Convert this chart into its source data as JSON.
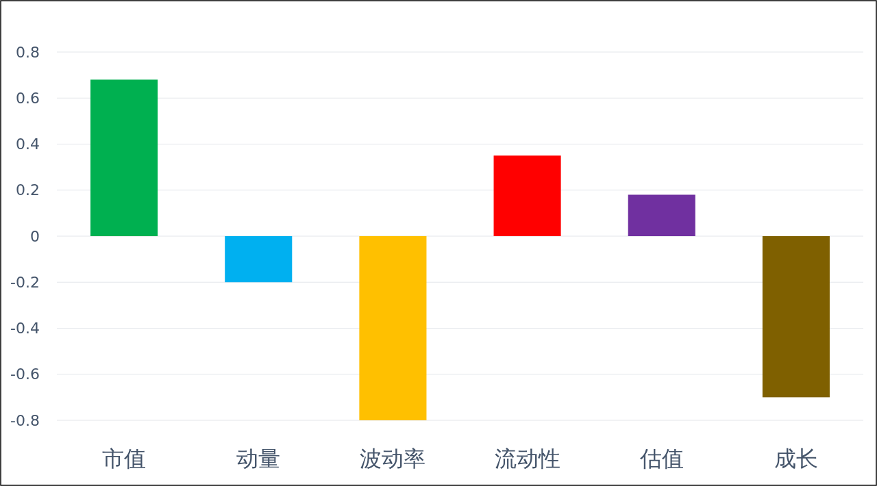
{
  "chart_data": {
    "type": "bar",
    "categories": [
      "市值",
      "动量",
      "波动率",
      "流动性",
      "估值",
      "成长"
    ],
    "values": [
      0.68,
      -0.2,
      -0.8,
      0.35,
      0.18,
      -0.7
    ],
    "colors": [
      "#00b050",
      "#00b0f0",
      "#ffc000",
      "#ff0000",
      "#7030a0",
      "#7f6000"
    ],
    "ylim": [
      -0.8,
      0.8
    ],
    "yticks": [
      {
        "value": 0.8,
        "label": "0.8"
      },
      {
        "value": 0.6,
        "label": "0.6"
      },
      {
        "value": 0.4,
        "label": "0.4"
      },
      {
        "value": 0.2,
        "label": "0.2"
      },
      {
        "value": 0,
        "label": "0"
      },
      {
        "value": -0.2,
        "label": "-0.2"
      },
      {
        "value": -0.4,
        "label": "-0.4"
      },
      {
        "value": -0.6,
        "label": "-0.6"
      },
      {
        "value": -0.8,
        "label": "-0.8"
      }
    ],
    "grid": "y"
  }
}
